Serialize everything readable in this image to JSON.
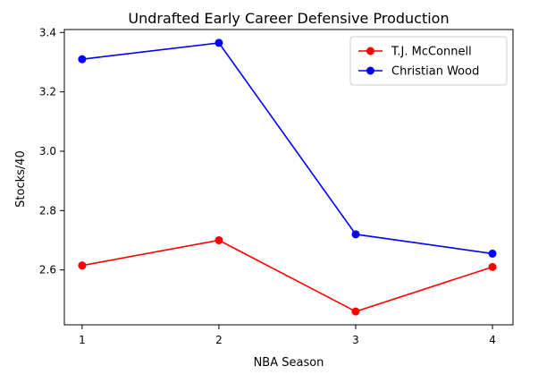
{
  "chart_data": {
    "type": "line",
    "title": "Undrafted Early Career Defensive Production",
    "xlabel": "NBA Season",
    "ylabel": "Stocks/40",
    "x": [
      1,
      2,
      3,
      4
    ],
    "xticks": [
      "1",
      "2",
      "3",
      "4"
    ],
    "xlim": [
      0.87,
      4.15
    ],
    "yticks": [
      "2.6",
      "2.8",
      "3.0",
      "3.2",
      "3.4"
    ],
    "ytick_values": [
      2.6,
      2.8,
      3.0,
      3.2,
      3.4
    ],
    "ylim": [
      2.415,
      3.41
    ],
    "grid": false,
    "legend_position": "top-right",
    "series": [
      {
        "name": "T.J. McConnell",
        "color": "#ff0000",
        "values": [
          2.615,
          2.7,
          2.46,
          2.61
        ]
      },
      {
        "name": "Christian Wood",
        "color": "#0000ff",
        "values": [
          3.31,
          3.365,
          2.72,
          2.655
        ]
      }
    ]
  }
}
